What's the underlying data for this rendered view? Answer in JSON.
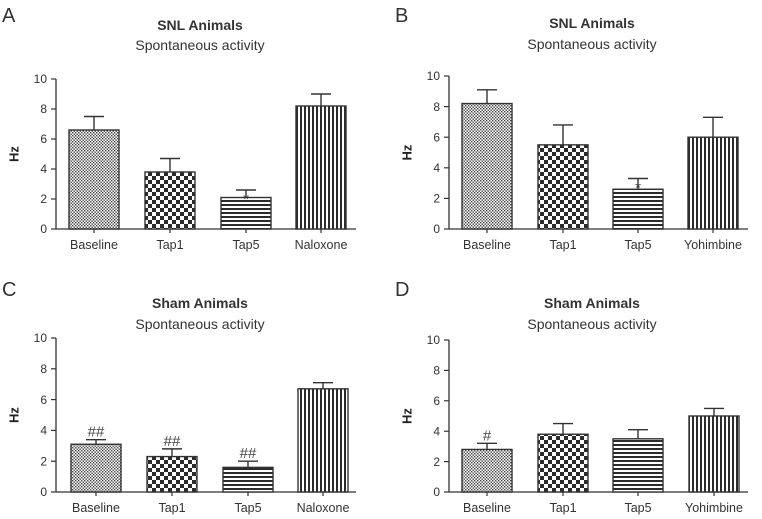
{
  "chart_data": [
    {
      "type": "bar",
      "panel": "A",
      "title": "SNL Animals",
      "subtitle": "Spontaneous activity",
      "ylabel": "Hz",
      "xlabel": "",
      "ylim": [
        0,
        10
      ],
      "yticks": [
        "0",
        "2",
        "4",
        "6",
        "8",
        "10"
      ],
      "categories": [
        "Baseline",
        "Tap1",
        "Tap5",
        "Naloxone"
      ],
      "values": [
        6.6,
        3.8,
        2.1,
        8.2
      ],
      "errors": [
        0.9,
        0.9,
        0.5,
        0.8
      ],
      "patterns": [
        "dots",
        "checker",
        "hlines",
        "vlines"
      ],
      "annotations": [
        "",
        "",
        "*",
        ""
      ]
    },
    {
      "type": "bar",
      "panel": "B",
      "title": "SNL Animals",
      "subtitle": "Spontaneous activity",
      "ylabel": "Hz",
      "xlabel": "",
      "ylim": [
        0,
        10
      ],
      "yticks": [
        "0",
        "2",
        "4",
        "6",
        "8",
        "10"
      ],
      "categories": [
        "Baseline",
        "Tap1",
        "Tap5",
        "Yohimbine"
      ],
      "values": [
        8.2,
        5.5,
        2.6,
        6.0
      ],
      "errors": [
        0.9,
        1.3,
        0.7,
        1.3
      ],
      "patterns": [
        "dots",
        "checker",
        "hlines",
        "vlines"
      ],
      "annotations": [
        "",
        "",
        "*",
        ""
      ]
    },
    {
      "type": "bar",
      "panel": "C",
      "title": "Sham Animals",
      "subtitle": "Spontaneous activity",
      "ylabel": "Hz",
      "xlabel": "",
      "ylim": [
        0,
        10
      ],
      "yticks": [
        "0",
        "2",
        "4",
        "6",
        "8",
        "10"
      ],
      "categories": [
        "Baseline",
        "Tap1",
        "Tap5",
        "Naloxone"
      ],
      "values": [
        3.1,
        2.3,
        1.6,
        6.7
      ],
      "errors": [
        0.3,
        0.5,
        0.4,
        0.4
      ],
      "patterns": [
        "dots",
        "checker",
        "hlines",
        "vlines"
      ],
      "annotations": [
        "##",
        "##",
        "##",
        ""
      ]
    },
    {
      "type": "bar",
      "panel": "D",
      "title": "Sham Animals",
      "subtitle": "Spontaneous activity",
      "ylabel": "Hz",
      "xlabel": "",
      "ylim": [
        0,
        10
      ],
      "yticks": [
        "0",
        "2",
        "4",
        "6",
        "8",
        "10"
      ],
      "categories": [
        "Baseline",
        "Tap1",
        "Tap5",
        "Yohimbine"
      ],
      "values": [
        2.8,
        3.8,
        3.5,
        5.0
      ],
      "errors": [
        0.4,
        0.7,
        0.6,
        0.5
      ],
      "patterns": [
        "dots",
        "checker",
        "hlines",
        "vlines"
      ],
      "annotations": [
        "#",
        "",
        "",
        ""
      ]
    }
  ],
  "colors": {
    "ink": "#333333",
    "bar_fill": "#ffffff",
    "pattern": "#2b2b2b"
  }
}
